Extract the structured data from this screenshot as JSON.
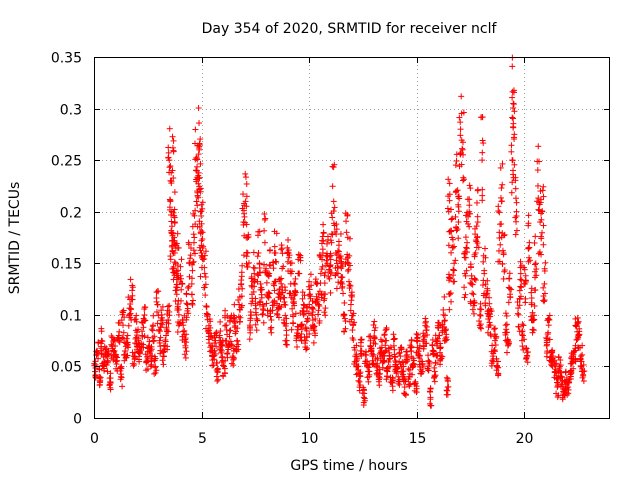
{
  "chart_data": {
    "type": "scatter",
    "title": "Day 354 of 2020, SRMTID for receiver nclf",
    "xlabel": "GPS time / hours",
    "ylabel": "SRMTID / TECUs",
    "xlim": [
      0,
      24
    ],
    "ylim": [
      0,
      0.35
    ],
    "x_ticks": [
      0,
      5,
      10,
      15,
      20
    ],
    "x_tick_labels": [
      "0",
      "5",
      "10",
      "15",
      "20"
    ],
    "y_ticks": [
      0,
      0.05,
      0.1,
      0.15,
      0.2,
      0.25,
      0.3,
      0.35
    ],
    "y_tick_labels": [
      "0",
      "0.05",
      "0.1",
      "0.15",
      "0.2",
      "0.25",
      "0.3",
      "0.35"
    ],
    "grid": true,
    "marker": "+",
    "marker_color": "#ff0000",
    "series": [
      {
        "name": "nclf",
        "points": [
          [
            0.05,
            0.045
          ],
          [
            0.15,
            0.065
          ],
          [
            0.25,
            0.04
          ],
          [
            0.35,
            0.075
          ],
          [
            0.45,
            0.05
          ],
          [
            0.55,
            0.06
          ],
          [
            0.65,
            0.055
          ],
          [
            0.75,
            0.035
          ],
          [
            0.85,
            0.07
          ],
          [
            0.95,
            0.065
          ],
          [
            1.05,
            0.055
          ],
          [
            1.15,
            0.08
          ],
          [
            1.25,
            0.04
          ],
          [
            1.35,
            0.09
          ],
          [
            1.45,
            0.065
          ],
          [
            1.55,
            0.07
          ],
          [
            1.65,
            0.1
          ],
          [
            1.75,
            0.115
          ],
          [
            1.85,
            0.06
          ],
          [
            1.95,
            0.085
          ],
          [
            2.05,
            0.075
          ],
          [
            2.15,
            0.065
          ],
          [
            2.25,
            0.08
          ],
          [
            2.35,
            0.095
          ],
          [
            2.45,
            0.055
          ],
          [
            2.55,
            0.07
          ],
          [
            2.65,
            0.06
          ],
          [
            2.75,
            0.09
          ],
          [
            2.85,
            0.05
          ],
          [
            2.95,
            0.11
          ],
          [
            3.05,
            0.075
          ],
          [
            3.15,
            0.1
          ],
          [
            3.25,
            0.06
          ],
          [
            3.35,
            0.08
          ],
          [
            3.45,
            0.095
          ],
          [
            3.5,
            0.25
          ],
          [
            3.55,
            0.21
          ],
          [
            3.6,
            0.18
          ],
          [
            3.65,
            0.24
          ],
          [
            3.7,
            0.16
          ],
          [
            3.75,
            0.19
          ],
          [
            3.8,
            0.15
          ],
          [
            3.85,
            0.12
          ],
          [
            3.9,
            0.165
          ],
          [
            3.95,
            0.1
          ],
          [
            4.05,
            0.135
          ],
          [
            4.15,
            0.09
          ],
          [
            4.25,
            0.07
          ],
          [
            4.35,
            0.11
          ],
          [
            4.45,
            0.15
          ],
          [
            4.55,
            0.13
          ],
          [
            4.65,
            0.17
          ],
          [
            4.75,
            0.24
          ],
          [
            4.8,
            0.22
          ],
          [
            4.85,
            0.235
          ],
          [
            4.9,
            0.26
          ],
          [
            4.95,
            0.2
          ],
          [
            5.0,
            0.16
          ],
          [
            5.05,
            0.18
          ],
          [
            5.15,
            0.14
          ],
          [
            5.25,
            0.1
          ],
          [
            5.35,
            0.085
          ],
          [
            5.45,
            0.07
          ],
          [
            5.55,
            0.06
          ],
          [
            5.65,
            0.075
          ],
          [
            5.75,
            0.045
          ],
          [
            5.85,
            0.08
          ],
          [
            5.95,
            0.065
          ],
          [
            6.05,
            0.05
          ],
          [
            6.15,
            0.09
          ],
          [
            6.25,
            0.07
          ],
          [
            6.35,
            0.085
          ],
          [
            6.45,
            0.06
          ],
          [
            6.55,
            0.095
          ],
          [
            6.65,
            0.075
          ],
          [
            6.75,
            0.11
          ],
          [
            6.85,
            0.13
          ],
          [
            6.95,
            0.19
          ],
          [
            7.05,
            0.21
          ],
          [
            7.15,
            0.16
          ],
          [
            7.25,
            0.09
          ],
          [
            7.35,
            0.12
          ],
          [
            7.45,
            0.14
          ],
          [
            7.55,
            0.1
          ],
          [
            7.65,
            0.16
          ],
          [
            7.75,
            0.13
          ],
          [
            7.85,
            0.11
          ],
          [
            7.95,
            0.17
          ],
          [
            8.05,
            0.12
          ],
          [
            8.15,
            0.14
          ],
          [
            8.25,
            0.095
          ],
          [
            8.35,
            0.13
          ],
          [
            8.45,
            0.16
          ],
          [
            8.55,
            0.105
          ],
          [
            8.65,
            0.125
          ],
          [
            8.75,
            0.145
          ],
          [
            8.85,
            0.11
          ],
          [
            8.95,
            0.085
          ],
          [
            9.05,
            0.16
          ],
          [
            9.15,
            0.13
          ],
          [
            9.25,
            0.1
          ],
          [
            9.35,
            0.12
          ],
          [
            9.45,
            0.08
          ],
          [
            9.55,
            0.14
          ],
          [
            9.65,
            0.09
          ],
          [
            9.75,
            0.11
          ],
          [
            9.85,
            0.075
          ],
          [
            9.95,
            0.095
          ],
          [
            10.05,
            0.12
          ],
          [
            10.15,
            0.1
          ],
          [
            10.25,
            0.085
          ],
          [
            10.35,
            0.13
          ],
          [
            10.45,
            0.11
          ],
          [
            10.55,
            0.14
          ],
          [
            10.65,
            0.16
          ],
          [
            10.75,
            0.12
          ],
          [
            10.85,
            0.15
          ],
          [
            10.95,
            0.135
          ],
          [
            11.05,
            0.17
          ],
          [
            11.15,
            0.21
          ],
          [
            11.25,
            0.16
          ],
          [
            11.35,
            0.14
          ],
          [
            11.45,
            0.155
          ],
          [
            11.55,
            0.13
          ],
          [
            11.65,
            0.1
          ],
          [
            11.75,
            0.18
          ],
          [
            11.85,
            0.15
          ],
          [
            11.95,
            0.11
          ],
          [
            12.05,
            0.09
          ],
          [
            12.15,
            0.06
          ],
          [
            12.25,
            0.05
          ],
          [
            12.35,
            0.035
          ],
          [
            12.45,
            0.065
          ],
          [
            12.55,
            0.02
          ],
          [
            12.65,
            0.055
          ],
          [
            12.75,
            0.045
          ],
          [
            12.85,
            0.07
          ],
          [
            12.95,
            0.06
          ],
          [
            13.05,
            0.085
          ],
          [
            13.15,
            0.05
          ],
          [
            13.25,
            0.04
          ],
          [
            13.35,
            0.065
          ],
          [
            13.45,
            0.055
          ],
          [
            13.55,
            0.075
          ],
          [
            13.65,
            0.045
          ],
          [
            13.75,
            0.06
          ],
          [
            13.85,
            0.035
          ],
          [
            13.95,
            0.07
          ],
          [
            14.05,
            0.05
          ],
          [
            14.15,
            0.04
          ],
          [
            14.25,
            0.06
          ],
          [
            14.35,
            0.045
          ],
          [
            14.45,
            0.03
          ],
          [
            14.55,
            0.055
          ],
          [
            14.65,
            0.04
          ],
          [
            14.75,
            0.065
          ],
          [
            14.85,
            0.05
          ],
          [
            14.95,
            0.035
          ],
          [
            15.05,
            0.075
          ],
          [
            15.15,
            0.06
          ],
          [
            15.25,
            0.045
          ],
          [
            15.35,
            0.07
          ],
          [
            15.45,
            0.085
          ],
          [
            15.55,
            0.055
          ],
          [
            15.65,
            0.02
          ],
          [
            15.75,
            0.065
          ],
          [
            15.85,
            0.045
          ],
          [
            15.95,
            0.07
          ],
          [
            16.05,
            0.08
          ],
          [
            16.15,
            0.06
          ],
          [
            16.25,
            0.1
          ],
          [
            16.35,
            0.085
          ],
          [
            16.45,
            0.03
          ],
          [
            16.5,
            0.2
          ],
          [
            16.55,
            0.12
          ],
          [
            16.65,
            0.175
          ],
          [
            16.75,
            0.15
          ],
          [
            16.85,
            0.22
          ],
          [
            16.95,
            0.19
          ],
          [
            17.05,
            0.28
          ],
          [
            17.15,
            0.26
          ],
          [
            17.25,
            0.14
          ],
          [
            17.35,
            0.17
          ],
          [
            17.45,
            0.2
          ],
          [
            17.55,
            0.13
          ],
          [
            17.65,
            0.12
          ],
          [
            17.75,
            0.16
          ],
          [
            17.85,
            0.19
          ],
          [
            17.95,
            0.1
          ],
          [
            18.05,
            0.25
          ],
          [
            18.15,
            0.14
          ],
          [
            18.25,
            0.12
          ],
          [
            18.35,
            0.1
          ],
          [
            18.45,
            0.09
          ],
          [
            18.55,
            0.06
          ],
          [
            18.65,
            0.075
          ],
          [
            18.75,
            0.05
          ],
          [
            18.85,
            0.18
          ],
          [
            18.95,
            0.21
          ],
          [
            19.05,
            0.16
          ],
          [
            19.15,
            0.09
          ],
          [
            19.25,
            0.07
          ],
          [
            19.35,
            0.12
          ],
          [
            19.45,
            0.25
          ],
          [
            19.5,
            0.305
          ],
          [
            19.55,
            0.275
          ],
          [
            19.65,
            0.2
          ],
          [
            19.75,
            0.1
          ],
          [
            19.85,
            0.14
          ],
          [
            19.95,
            0.08
          ],
          [
            20.05,
            0.13
          ],
          [
            20.15,
            0.06
          ],
          [
            20.25,
            0.17
          ],
          [
            20.35,
            0.11
          ],
          [
            20.45,
            0.095
          ],
          [
            20.55,
            0.15
          ],
          [
            20.65,
            0.225
          ],
          [
            20.75,
            0.19
          ],
          [
            20.85,
            0.2
          ],
          [
            20.95,
            0.13
          ],
          [
            21.05,
            0.07
          ],
          [
            21.15,
            0.09
          ],
          [
            21.25,
            0.055
          ],
          [
            21.35,
            0.06
          ],
          [
            21.45,
            0.045
          ],
          [
            21.55,
            0.03
          ],
          [
            21.65,
            0.05
          ],
          [
            21.75,
            0.04
          ],
          [
            21.85,
            0.025
          ],
          [
            21.95,
            0.035
          ],
          [
            22.05,
            0.03
          ],
          [
            22.15,
            0.045
          ],
          [
            22.25,
            0.055
          ],
          [
            22.35,
            0.065
          ],
          [
            22.45,
            0.09
          ],
          [
            22.55,
            0.08
          ],
          [
            22.65,
            0.06
          ],
          [
            22.75,
            0.045
          ]
        ]
      }
    ]
  }
}
